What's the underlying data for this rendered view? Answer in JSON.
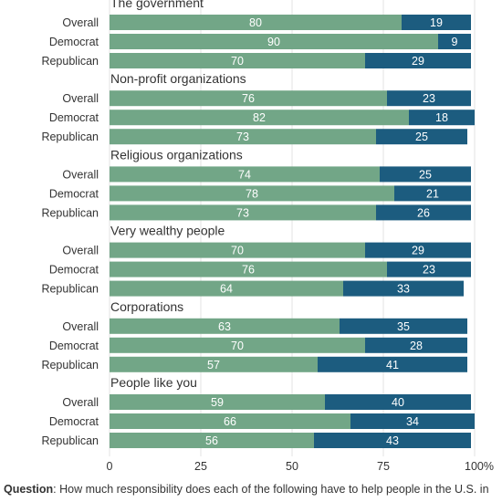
{
  "chart_data": {
    "type": "bar",
    "orientation": "horizontal",
    "stacked": true,
    "xlim": [
      0,
      100
    ],
    "xticks": [
      "0",
      "25",
      "50",
      "75",
      "100%"
    ],
    "grid": true,
    "colors": {
      "series1": "#72a687",
      "series2": "#1c5c7f",
      "label": "#ffffff"
    },
    "groups": [
      {
        "title": "The government",
        "rows": [
          {
            "label": "Overall",
            "values": [
              80,
              19
            ]
          },
          {
            "label": "Democrat",
            "values": [
              90,
              9
            ]
          },
          {
            "label": "Republican",
            "values": [
              70,
              29
            ]
          }
        ]
      },
      {
        "title": "Non-profit organizations",
        "rows": [
          {
            "label": "Overall",
            "values": [
              76,
              23
            ]
          },
          {
            "label": "Democrat",
            "values": [
              82,
              18
            ]
          },
          {
            "label": "Republican",
            "values": [
              73,
              25
            ]
          }
        ]
      },
      {
        "title": "Religious organizations",
        "rows": [
          {
            "label": "Overall",
            "values": [
              74,
              25
            ]
          },
          {
            "label": "Democrat",
            "values": [
              78,
              21
            ]
          },
          {
            "label": "Republican",
            "values": [
              73,
              26
            ]
          }
        ]
      },
      {
        "title": "Very wealthy people",
        "rows": [
          {
            "label": "Overall",
            "values": [
              70,
              29
            ]
          },
          {
            "label": "Democrat",
            "values": [
              76,
              23
            ]
          },
          {
            "label": "Republican",
            "values": [
              64,
              33
            ]
          }
        ]
      },
      {
        "title": "Corporations",
        "rows": [
          {
            "label": "Overall",
            "values": [
              63,
              35
            ]
          },
          {
            "label": "Democrat",
            "values": [
              70,
              28
            ]
          },
          {
            "label": "Republican",
            "values": [
              57,
              41
            ]
          }
        ]
      },
      {
        "title": "People like you",
        "rows": [
          {
            "label": "Overall",
            "values": [
              59,
              40
            ]
          },
          {
            "label": "Democrat",
            "values": [
              66,
              34
            ]
          },
          {
            "label": "Republican",
            "values": [
              56,
              43
            ]
          }
        ]
      }
    ]
  },
  "footnote": {
    "label": "Question",
    "text": ": How much responsibility does each of the following have to help people in the U.S. in"
  }
}
